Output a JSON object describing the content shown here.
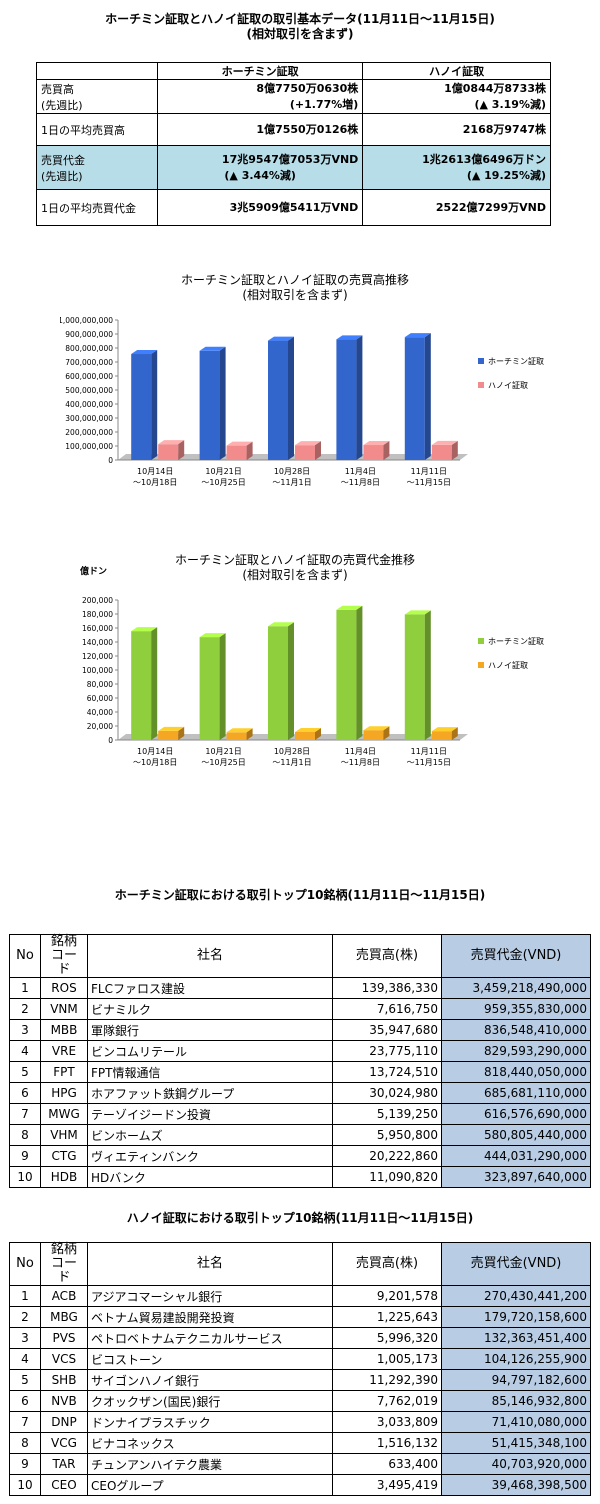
{
  "summary": {
    "title_line1": "ホーチミン証取とハノイ証取の取引基本データ(11月11日～11月15日)",
    "title_line2": "(相対取引を含まず)",
    "col_hcm": "ホーチミン証取",
    "col_hn": "ハノイ証取",
    "rows": [
      {
        "label1": "売買高",
        "label2": "(先週比)",
        "hcm1": "8億7750万0630株",
        "hcm2": "(+1.77%増)",
        "hn1": "1億0844万8733株",
        "hn2": "(▲ 3.19%減)"
      },
      {
        "label1": "1日の平均売買高",
        "hcm1": "1億7550万0126株",
        "hn1": "2168万9747株"
      },
      {
        "label1": "売買代金",
        "label2": "(先週比)",
        "hcm1": "17兆9547億7053万VND",
        "hcm2": "(▲ 3.44%減)",
        "hn1": "1兆2613億6496万ドン",
        "hn2": "(▲ 19.25%減)"
      },
      {
        "label1": "1日の平均売買代金",
        "hcm1": "3兆5909億5411万VND",
        "hn1": "2522億7299万VND"
      }
    ]
  },
  "chart_data": [
    {
      "type": "bar",
      "title": "ホーチミン証取とハノイ証取の売買高推移",
      "subtitle": "(相対取引を含まず)",
      "ylabel": "",
      "categories": [
        "10月14日\n～10月18日",
        "10月21日\n～10月25日",
        "10月28日\n～11月1日",
        "11月4日\n～11月8日",
        "11月11日\n～11月15日"
      ],
      "series": [
        {
          "name": "ホーチミン証取",
          "color": "#3366cc",
          "values": [
            757000000,
            780000000,
            853000000,
            862000000,
            877500000
          ]
        },
        {
          "name": "ハノイ証取",
          "color": "#f28c8c",
          "values": [
            113000000,
            103000000,
            106000000,
            107000000,
            108000000
          ]
        }
      ],
      "ylim": [
        0,
        1000000000
      ],
      "yticks": [
        "0",
        "100,000,000",
        "200,000,000",
        "300,000,000",
        "400,000,000",
        "500,000,000",
        "600,000,000",
        "700,000,000",
        "800,000,000",
        "900,000,000",
        "1,000,000,000"
      ],
      "legend_position": "right"
    },
    {
      "type": "bar",
      "title": "ホーチミン証取とハノイ証取の売買代金推移",
      "subtitle": "(相対取引を含まず)",
      "ylabel": "億ドン",
      "categories": [
        "10月14日\n～10月18日",
        "10月21日\n～10月25日",
        "10月28日\n～11月1日",
        "11月4日\n～11月8日",
        "11月11日\n～11月15日"
      ],
      "series": [
        {
          "name": "ホーチミン証取",
          "color": "#8fce3c",
          "values": [
            155500,
            147000,
            162500,
            186000,
            179500
          ]
        },
        {
          "name": "ハノイ証取",
          "color": "#f5a623",
          "values": [
            13000,
            11000,
            11500,
            14000,
            12600
          ]
        }
      ],
      "ylim": [
        0,
        200000
      ],
      "yticks": [
        "0",
        "20,000",
        "40,000",
        "60,000",
        "80,000",
        "100,000",
        "120,000",
        "140,000",
        "160,000",
        "180,000",
        "200,000"
      ],
      "legend_position": "right"
    }
  ],
  "hcm_top10": {
    "title": "ホーチミン証取における取引トップ10銘柄(11月11日～11月15日)",
    "headers": {
      "no": "No",
      "code1": "銘柄",
      "code2": "コード",
      "name": "社名",
      "volume": "売買高(株)",
      "value": "売買代金(VND)"
    },
    "rows": [
      {
        "no": "1",
        "code": "ROS",
        "name": "FLCファロス建設",
        "volume": "139,386,330",
        "value": "3,459,218,490,000"
      },
      {
        "no": "2",
        "code": "VNM",
        "name": "ビナミルク",
        "volume": "7,616,750",
        "value": "959,355,830,000"
      },
      {
        "no": "3",
        "code": "MBB",
        "name": "軍隊銀行",
        "volume": "35,947,680",
        "value": "836,548,410,000"
      },
      {
        "no": "4",
        "code": "VRE",
        "name": "ビンコムリテール",
        "volume": "23,775,110",
        "value": "829,593,290,000"
      },
      {
        "no": "5",
        "code": "FPT",
        "name": "FPT情報通信",
        "volume": "13,724,510",
        "value": "818,440,050,000"
      },
      {
        "no": "6",
        "code": "HPG",
        "name": "ホアファット鉄鋼グループ",
        "volume": "30,024,980",
        "value": "685,681,110,000"
      },
      {
        "no": "7",
        "code": "MWG",
        "name": "テーゾイジードン投資",
        "volume": "5,139,250",
        "value": "616,576,690,000"
      },
      {
        "no": "8",
        "code": "VHM",
        "name": "ビンホームズ",
        "volume": "5,950,800",
        "value": "580,805,440,000"
      },
      {
        "no": "9",
        "code": "CTG",
        "name": "ヴィエティンバンク",
        "volume": "20,222,860",
        "value": "444,031,290,000"
      },
      {
        "no": "10",
        "code": "HDB",
        "name": "HDバンク",
        "volume": "11,090,820",
        "value": "323,897,640,000"
      }
    ]
  },
  "hn_top10": {
    "title": "ハノイ証取における取引トップ10銘柄(11月11日～11月15日)",
    "headers": {
      "no": "No",
      "code1": "銘柄",
      "code2": "コード",
      "name": "社名",
      "volume": "売買高(株)",
      "value": "売買代金(VND)"
    },
    "rows": [
      {
        "no": "1",
        "code": "ACB",
        "name": "アジアコマーシャル銀行",
        "volume": "9,201,578",
        "value": "270,430,441,200"
      },
      {
        "no": "2",
        "code": "MBG",
        "name": "ベトナム貿易建設開発投資",
        "volume": "1,225,643",
        "value": "179,720,158,600"
      },
      {
        "no": "3",
        "code": "PVS",
        "name": "ペトロベトナムテクニカルサービス",
        "volume": "5,996,320",
        "value": "132,363,451,400"
      },
      {
        "no": "4",
        "code": "VCS",
        "name": "ビコストーン",
        "volume": "1,005,173",
        "value": "104,126,255,900"
      },
      {
        "no": "5",
        "code": "SHB",
        "name": "サイゴンハノイ銀行",
        "volume": "11,292,390",
        "value": "94,797,182,600"
      },
      {
        "no": "6",
        "code": "NVB",
        "name": "クオックザン(国民)銀行",
        "volume": "7,762,019",
        "value": "85,146,932,800"
      },
      {
        "no": "7",
        "code": "DNP",
        "name": "ドンナイプラスチック",
        "volume": "3,033,809",
        "value": "71,410,080,000"
      },
      {
        "no": "8",
        "code": "VCG",
        "name": "ビナコネックス",
        "volume": "1,516,132",
        "value": "51,415,348,100"
      },
      {
        "no": "9",
        "code": "TAR",
        "name": "チュンアンハイテク農業",
        "volume": "633,400",
        "value": "40,703,920,000"
      },
      {
        "no": "10",
        "code": "CEO",
        "name": "CEOグループ",
        "volume": "3,495,419",
        "value": "39,468,398,500"
      }
    ]
  }
}
